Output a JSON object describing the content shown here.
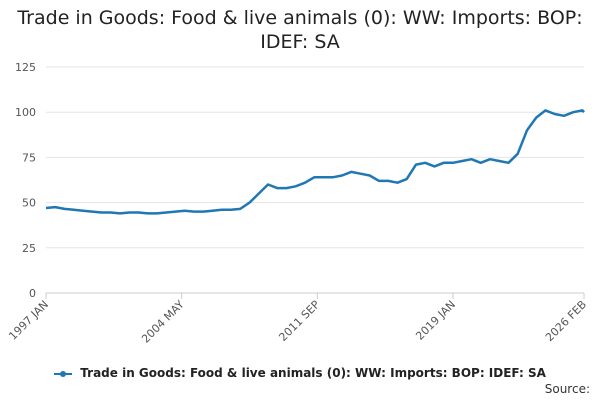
{
  "chart_data": {
    "type": "line",
    "title_line1": "Trade in Goods: Food & live animals (0): WW: Imports: BOP:",
    "title_line2": "IDEF: SA",
    "xlabel": "",
    "ylabel": "",
    "ylim": [
      0,
      125
    ],
    "yticks": [
      0,
      25,
      50,
      75,
      100,
      125
    ],
    "xlim": [
      1997.0,
      2026.083
    ],
    "xtick_labels": [
      "1997 JAN",
      "2004 MAY",
      "2011 SEP",
      "2019 JAN",
      "2026 FEB"
    ],
    "xtick_positions": [
      1997.0,
      2004.333,
      2011.667,
      2019.0,
      2026.083
    ],
    "grid": true,
    "legend_position": "bottom",
    "source_label": "Source:",
    "color": "#1f77b4",
    "series": [
      {
        "name": "Trade in Goods: Food & live animals (0): WW: Imports: BOP: IDEF: SA",
        "points": [
          [
            1997.0,
            47
          ],
          [
            1997.5,
            47.5
          ],
          [
            1998.0,
            46.5
          ],
          [
            1998.5,
            46
          ],
          [
            1999.0,
            45.5
          ],
          [
            1999.5,
            45
          ],
          [
            2000.0,
            44.5
          ],
          [
            2000.5,
            44.5
          ],
          [
            2001.0,
            44
          ],
          [
            2001.5,
            44.5
          ],
          [
            2002.0,
            44.5
          ],
          [
            2002.5,
            44
          ],
          [
            2003.0,
            44
          ],
          [
            2003.5,
            44.5
          ],
          [
            2004.0,
            45
          ],
          [
            2004.5,
            45.5
          ],
          [
            2005.0,
            45
          ],
          [
            2005.5,
            45
          ],
          [
            2006.0,
            45.5
          ],
          [
            2006.5,
            46
          ],
          [
            2007.0,
            46
          ],
          [
            2007.5,
            46.5
          ],
          [
            2008.0,
            50
          ],
          [
            2008.5,
            55
          ],
          [
            2009.0,
            60
          ],
          [
            2009.5,
            58
          ],
          [
            2010.0,
            58
          ],
          [
            2010.5,
            59
          ],
          [
            2011.0,
            61
          ],
          [
            2011.5,
            64
          ],
          [
            2012.0,
            64
          ],
          [
            2012.5,
            64
          ],
          [
            2013.0,
            65
          ],
          [
            2013.5,
            67
          ],
          [
            2014.0,
            66
          ],
          [
            2014.5,
            65
          ],
          [
            2015.0,
            62
          ],
          [
            2015.5,
            62
          ],
          [
            2016.0,
            61
          ],
          [
            2016.5,
            63
          ],
          [
            2017.0,
            71
          ],
          [
            2017.5,
            72
          ],
          [
            2018.0,
            70
          ],
          [
            2018.5,
            72
          ],
          [
            2019.0,
            72
          ],
          [
            2019.5,
            73
          ],
          [
            2020.0,
            74
          ],
          [
            2020.5,
            72
          ],
          [
            2021.0,
            74
          ],
          [
            2021.5,
            73
          ],
          [
            2022.0,
            72
          ],
          [
            2022.5,
            77
          ],
          [
            2023.0,
            90
          ],
          [
            2023.5,
            97
          ],
          [
            2024.0,
            101
          ],
          [
            2024.5,
            99
          ],
          [
            2025.0,
            98
          ],
          [
            2025.5,
            100
          ],
          [
            2026.0,
            101
          ],
          [
            2026.083,
            100
          ]
        ]
      }
    ]
  }
}
